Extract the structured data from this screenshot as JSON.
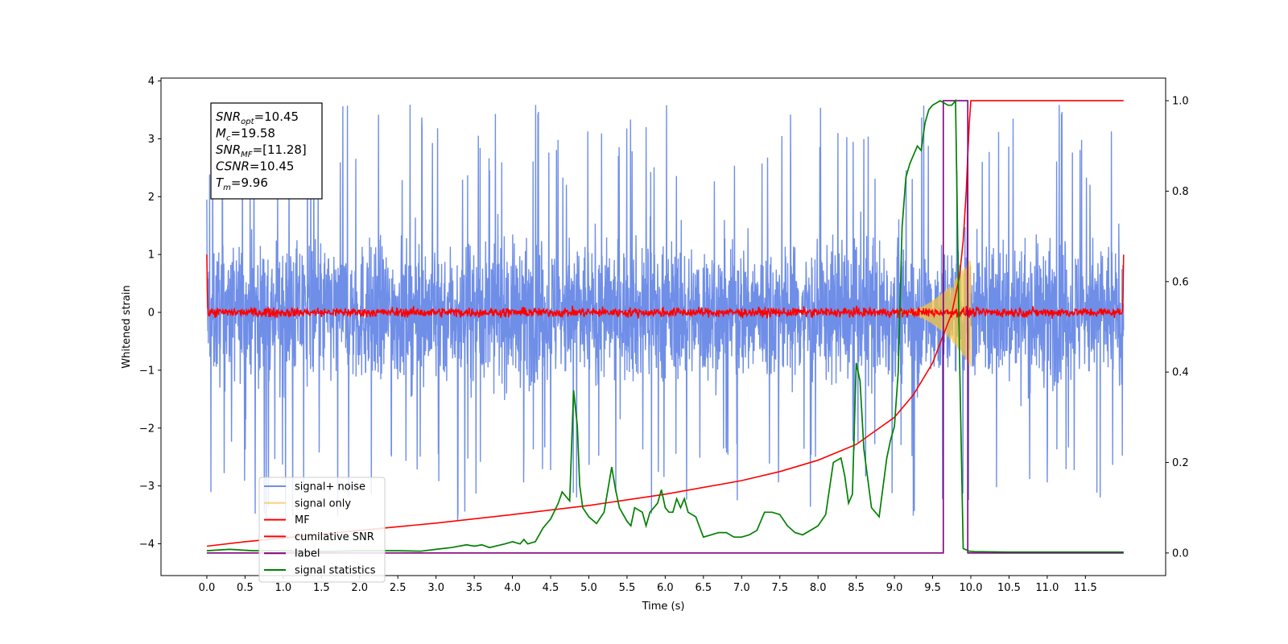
{
  "chart_data": {
    "type": "line",
    "xlabel": "Time (s)",
    "ylabel": "Whitened strain",
    "xlim": [
      -0.6,
      12.55
    ],
    "ylim": [
      -4.55,
      4.05
    ],
    "y2lim": [
      -0.05,
      1.05
    ],
    "x_ticks": [
      "0.0",
      "0.5",
      "1.0",
      "1.5",
      "2.0",
      "2.5",
      "3.0",
      "3.5",
      "4.0",
      "4.5",
      "5.0",
      "5.5",
      "6.0",
      "6.5",
      "7.0",
      "7.5",
      "8.0",
      "8.5",
      "9.0",
      "9.5",
      "10.0",
      "10.5",
      "11.0",
      "11.5"
    ],
    "y_ticks": [
      "4",
      "3",
      "2",
      "1",
      "0",
      "−1",
      "−2",
      "−3",
      "−4"
    ],
    "y2_ticks": [
      "0.0",
      "0.2",
      "0.4",
      "0.6",
      "0.8",
      "1.0"
    ],
    "annotation": [
      {
        "base": "SNR",
        "sub": "opt",
        "value": "=10.45"
      },
      {
        "base": "M",
        "sub": "c",
        "value": "=19.58"
      },
      {
        "base": "SNR",
        "sub": "MF",
        "value": "=[11.28]"
      },
      {
        "base": "CSNR",
        "sub": "",
        "value": "=10.45"
      },
      {
        "base": "T",
        "sub": "m",
        "value": "=9.96"
      }
    ],
    "legend": {
      "position": "lower-left",
      "entries": [
        "signal+ noise",
        "signal only",
        "MF",
        "cumilative SNR",
        "label",
        "signal statistics"
      ]
    },
    "colors": {
      "signal_noise": "#6f8ee8",
      "signal_only": "#f5c542",
      "mf": "#ff0000",
      "cumulative_snr": "#ff0000",
      "label": "#800080",
      "signal_statistics": "#008000"
    },
    "signal_noise": {
      "axis": "left",
      "x_range": [
        0,
        12
      ],
      "amplitude": 1.3,
      "peak_max": 3.65,
      "peak_min": -4.1
    },
    "signal_only": {
      "axis": "left",
      "chirp_start": 9.0,
      "chirp_end": 10.0,
      "peak_amplitude": 0.95
    },
    "mf": {
      "axis": "left",
      "baseline": 0.0,
      "noise_amplitude": 0.1,
      "start_value": 1.0,
      "end_value": 1.0
    },
    "cumulative_snr": {
      "axis": "right",
      "x": [
        0.0,
        0.5,
        1.0,
        2.0,
        3.0,
        4.0,
        5.0,
        6.0,
        7.0,
        7.5,
        8.0,
        8.5,
        9.0,
        9.25,
        9.5,
        9.75,
        9.85,
        9.9,
        9.94,
        9.96,
        9.98,
        10.0,
        12.0
      ],
      "y": [
        0.015,
        0.025,
        0.033,
        0.05,
        0.066,
        0.085,
        0.105,
        0.13,
        0.16,
        0.18,
        0.205,
        0.24,
        0.3,
        0.35,
        0.42,
        0.53,
        0.61,
        0.69,
        0.8,
        0.88,
        0.95,
        1.0,
        1.0
      ]
    },
    "label": {
      "axis": "right",
      "x": [
        0.0,
        9.64,
        9.64,
        9.96,
        9.96,
        12.0
      ],
      "y": [
        0,
        0,
        1,
        1,
        0,
        0
      ]
    },
    "signal_statistics": {
      "axis": "right",
      "x": [
        0.0,
        0.3,
        0.6,
        1.0,
        1.5,
        2.0,
        2.5,
        2.8,
        3.0,
        3.2,
        3.4,
        3.5,
        3.6,
        3.7,
        3.8,
        3.9,
        4.0,
        4.1,
        4.15,
        4.2,
        4.3,
        4.4,
        4.5,
        4.6,
        4.65,
        4.7,
        4.75,
        4.8,
        4.85,
        4.88,
        4.92,
        5.0,
        5.1,
        5.2,
        5.3,
        5.35,
        5.4,
        5.5,
        5.55,
        5.6,
        5.7,
        5.75,
        5.8,
        5.9,
        5.95,
        6.0,
        6.05,
        6.1,
        6.15,
        6.2,
        6.25,
        6.3,
        6.35,
        6.4,
        6.5,
        6.6,
        6.7,
        6.8,
        6.9,
        7.0,
        7.1,
        7.2,
        7.3,
        7.4,
        7.5,
        7.6,
        7.7,
        7.8,
        8.0,
        8.1,
        8.2,
        8.3,
        8.35,
        8.4,
        8.45,
        8.5,
        8.55,
        8.6,
        8.7,
        8.75,
        8.8,
        8.9,
        8.95,
        9.0,
        9.05,
        9.1,
        9.15,
        9.2,
        9.3,
        9.35,
        9.4,
        9.45,
        9.5,
        9.6,
        9.7,
        9.75,
        9.8,
        9.85,
        9.9,
        9.95,
        9.98,
        10.05,
        10.5,
        11.0,
        12.0
      ],
      "y": [
        0.005,
        0.008,
        0.005,
        0.005,
        0.003,
        0.005,
        0.005,
        0.004,
        0.008,
        0.012,
        0.018,
        0.015,
        0.018,
        0.012,
        0.016,
        0.02,
        0.025,
        0.02,
        0.03,
        0.02,
        0.025,
        0.055,
        0.075,
        0.11,
        0.135,
        0.125,
        0.115,
        0.36,
        0.28,
        0.15,
        0.1,
        0.08,
        0.065,
        0.09,
        0.19,
        0.14,
        0.1,
        0.07,
        0.06,
        0.1,
        0.09,
        0.06,
        0.09,
        0.11,
        0.14,
        0.1,
        0.09,
        0.09,
        0.12,
        0.1,
        0.12,
        0.09,
        0.085,
        0.08,
        0.035,
        0.04,
        0.045,
        0.045,
        0.035,
        0.035,
        0.04,
        0.05,
        0.09,
        0.09,
        0.085,
        0.06,
        0.045,
        0.04,
        0.06,
        0.085,
        0.2,
        0.21,
        0.17,
        0.11,
        0.13,
        0.42,
        0.38,
        0.23,
        0.1,
        0.09,
        0.08,
        0.21,
        0.25,
        0.28,
        0.4,
        0.72,
        0.83,
        0.86,
        0.9,
        0.89,
        0.95,
        0.98,
        0.99,
        1.0,
        0.99,
        0.99,
        1.0,
        0.45,
        0.01,
        0.006,
        0.004,
        0.003,
        0.002,
        0.002,
        0.002
      ]
    }
  }
}
